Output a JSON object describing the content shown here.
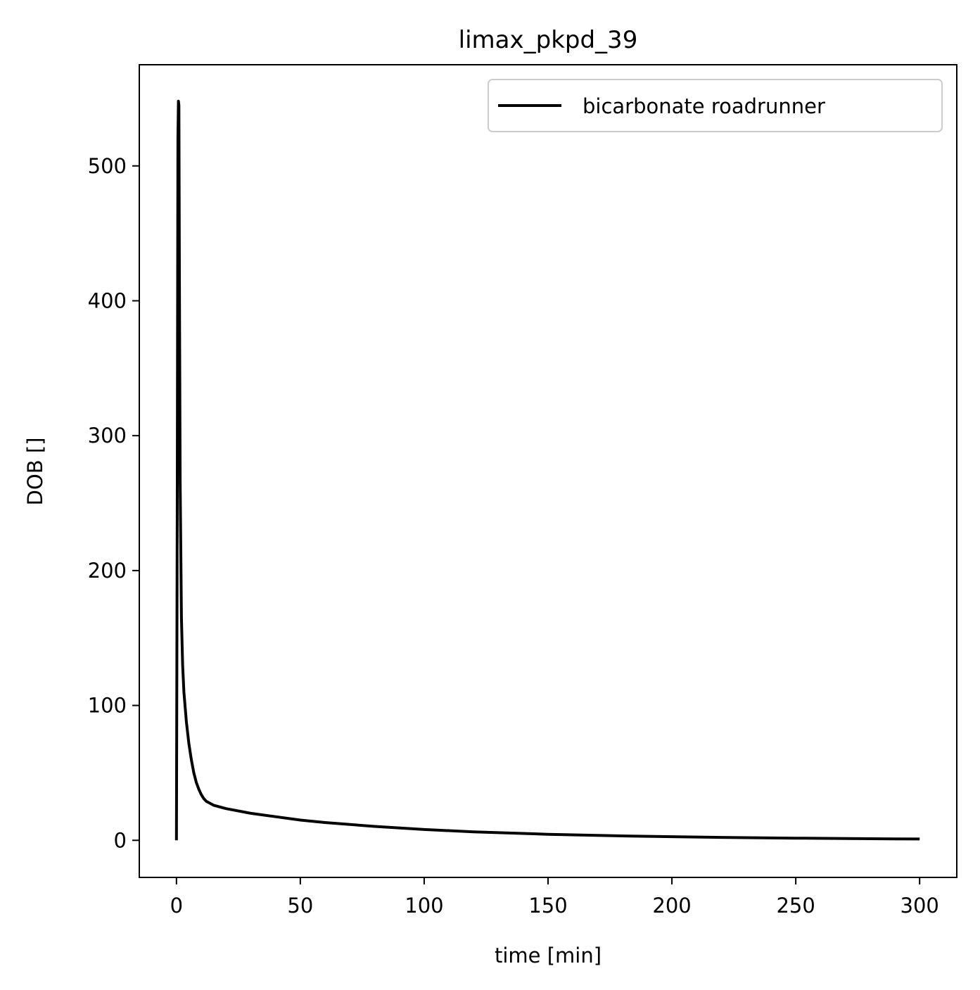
{
  "chart_data": {
    "type": "line",
    "title": "limax_pkpd_39",
    "xlabel": "time [min]",
    "ylabel": "DOB []",
    "xlim": [
      -15,
      315
    ],
    "ylim": [
      -27.5,
      575
    ],
    "xticks": [
      0,
      50,
      100,
      150,
      200,
      250,
      300
    ],
    "yticks": [
      0,
      100,
      200,
      300,
      400,
      500
    ],
    "grid": false,
    "legend_position": "top-right",
    "series": [
      {
        "name": "bicarbonate roadrunner",
        "color": "#000000",
        "x": [
          0,
          0.3,
          0.6,
          0.8,
          1.0,
          1.2,
          1.5,
          2.0,
          2.5,
          3,
          4,
          5,
          6,
          7,
          8,
          9,
          10,
          11,
          12,
          13,
          15,
          20,
          30,
          40,
          50,
          60,
          80,
          100,
          120,
          150,
          180,
          200,
          220,
          250,
          280,
          300
        ],
        "y": [
          0,
          240,
          520,
          548,
          545,
          420,
          265,
          165,
          130,
          110,
          88,
          72,
          60,
          50,
          43,
          38,
          34,
          31,
          29,
          28,
          26,
          23.5,
          20,
          17.5,
          15,
          13.2,
          10.3,
          8,
          6.3,
          4.5,
          3.3,
          2.7,
          2.2,
          1.6,
          1.2,
          1.0
        ]
      }
    ]
  }
}
